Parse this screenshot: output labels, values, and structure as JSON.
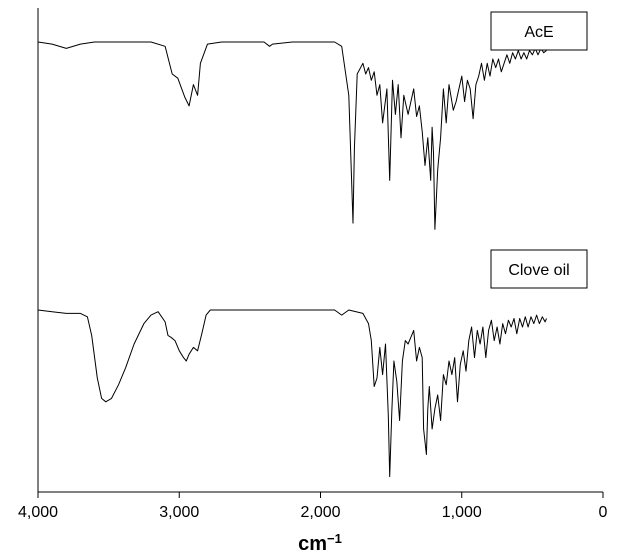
{
  "chart_data": {
    "type": "line",
    "xlabel": "cm",
    "xlabel_sup": "−1",
    "xlim": [
      4000,
      0
    ],
    "x_reversed": true,
    "xticks": [
      4000,
      3000,
      2000,
      1000,
      0
    ],
    "xtick_labels": [
      "4,000",
      "3,000",
      "2,000",
      "1,000",
      "0"
    ],
    "y_axis_labeled": false,
    "grid": false,
    "legend_placement": "top-right of each trace",
    "series": [
      {
        "name": "AcE",
        "color": "#000000",
        "points": [
          [
            4000,
            1.0
          ],
          [
            3900,
            0.99
          ],
          [
            3800,
            0.97
          ],
          [
            3700,
            0.99
          ],
          [
            3600,
            1.0
          ],
          [
            3400,
            1.0
          ],
          [
            3200,
            1.0
          ],
          [
            3100,
            0.98
          ],
          [
            3050,
            0.85
          ],
          [
            3010,
            0.83
          ],
          [
            2960,
            0.74
          ],
          [
            2930,
            0.7
          ],
          [
            2900,
            0.8
          ],
          [
            2870,
            0.75
          ],
          [
            2850,
            0.9
          ],
          [
            2800,
            0.99
          ],
          [
            2700,
            1.0
          ],
          [
            2400,
            1.0
          ],
          [
            2360,
            0.98
          ],
          [
            2340,
            0.99
          ],
          [
            2200,
            1.0
          ],
          [
            1900,
            1.0
          ],
          [
            1850,
            0.98
          ],
          [
            1800,
            0.75
          ],
          [
            1780,
            0.35
          ],
          [
            1770,
            0.15
          ],
          [
            1760,
            0.5
          ],
          [
            1740,
            0.85
          ],
          [
            1700,
            0.9
          ],
          [
            1680,
            0.85
          ],
          [
            1660,
            0.88
          ],
          [
            1640,
            0.82
          ],
          [
            1620,
            0.86
          ],
          [
            1600,
            0.75
          ],
          [
            1580,
            0.8
          ],
          [
            1560,
            0.62
          ],
          [
            1530,
            0.78
          ],
          [
            1510,
            0.35
          ],
          [
            1490,
            0.82
          ],
          [
            1470,
            0.66
          ],
          [
            1450,
            0.8
          ],
          [
            1430,
            0.55
          ],
          [
            1410,
            0.75
          ],
          [
            1380,
            0.66
          ],
          [
            1360,
            0.72
          ],
          [
            1340,
            0.78
          ],
          [
            1320,
            0.65
          ],
          [
            1300,
            0.7
          ],
          [
            1280,
            0.58
          ],
          [
            1260,
            0.42
          ],
          [
            1240,
            0.55
          ],
          [
            1220,
            0.35
          ],
          [
            1210,
            0.6
          ],
          [
            1200,
            0.48
          ],
          [
            1190,
            0.12
          ],
          [
            1170,
            0.4
          ],
          [
            1150,
            0.55
          ],
          [
            1130,
            0.78
          ],
          [
            1110,
            0.62
          ],
          [
            1090,
            0.8
          ],
          [
            1060,
            0.68
          ],
          [
            1040,
            0.72
          ],
          [
            1020,
            0.78
          ],
          [
            1000,
            0.84
          ],
          [
            980,
            0.72
          ],
          [
            960,
            0.82
          ],
          [
            940,
            0.78
          ],
          [
            920,
            0.64
          ],
          [
            900,
            0.8
          ],
          [
            880,
            0.84
          ],
          [
            860,
            0.9
          ],
          [
            840,
            0.82
          ],
          [
            820,
            0.9
          ],
          [
            800,
            0.84
          ],
          [
            780,
            0.92
          ],
          [
            760,
            0.88
          ],
          [
            740,
            0.92
          ],
          [
            720,
            0.86
          ],
          [
            700,
            0.9
          ],
          [
            680,
            0.94
          ],
          [
            660,
            0.9
          ],
          [
            640,
            0.95
          ],
          [
            620,
            0.92
          ],
          [
            600,
            0.96
          ],
          [
            580,
            0.92
          ],
          [
            560,
            0.95
          ],
          [
            540,
            0.92
          ],
          [
            520,
            0.96
          ],
          [
            500,
            0.94
          ],
          [
            480,
            0.97
          ],
          [
            460,
            0.94
          ],
          [
            440,
            0.97
          ],
          [
            420,
            0.95
          ],
          [
            400,
            0.96
          ]
        ]
      },
      {
        "name": "Clove oil",
        "color": "#000000",
        "points": [
          [
            4000,
            1.0
          ],
          [
            3900,
            0.99
          ],
          [
            3800,
            0.98
          ],
          [
            3700,
            0.98
          ],
          [
            3650,
            0.96
          ],
          [
            3620,
            0.85
          ],
          [
            3580,
            0.6
          ],
          [
            3550,
            0.48
          ],
          [
            3520,
            0.46
          ],
          [
            3480,
            0.48
          ],
          [
            3430,
            0.56
          ],
          [
            3380,
            0.66
          ],
          [
            3320,
            0.8
          ],
          [
            3250,
            0.92
          ],
          [
            3200,
            0.97
          ],
          [
            3150,
            0.99
          ],
          [
            3100,
            0.93
          ],
          [
            3080,
            0.85
          ],
          [
            3060,
            0.84
          ],
          [
            3030,
            0.82
          ],
          [
            3000,
            0.76
          ],
          [
            2970,
            0.72
          ],
          [
            2950,
            0.7
          ],
          [
            2930,
            0.74
          ],
          [
            2900,
            0.78
          ],
          [
            2870,
            0.76
          ],
          [
            2840,
            0.86
          ],
          [
            2810,
            0.97
          ],
          [
            2780,
            1.0
          ],
          [
            2600,
            1.0
          ],
          [
            2300,
            1.0
          ],
          [
            2000,
            1.0
          ],
          [
            1900,
            1.0
          ],
          [
            1850,
            0.97
          ],
          [
            1800,
            1.0
          ],
          [
            1700,
            0.98
          ],
          [
            1660,
            0.92
          ],
          [
            1640,
            0.82
          ],
          [
            1620,
            0.55
          ],
          [
            1600,
            0.6
          ],
          [
            1580,
            0.78
          ],
          [
            1560,
            0.62
          ],
          [
            1540,
            0.8
          ],
          [
            1520,
            0.38
          ],
          [
            1510,
            0.02
          ],
          [
            1495,
            0.4
          ],
          [
            1480,
            0.7
          ],
          [
            1460,
            0.58
          ],
          [
            1440,
            0.35
          ],
          [
            1420,
            0.7
          ],
          [
            1400,
            0.82
          ],
          [
            1380,
            0.8
          ],
          [
            1360,
            0.84
          ],
          [
            1340,
            0.88
          ],
          [
            1320,
            0.7
          ],
          [
            1300,
            0.78
          ],
          [
            1280,
            0.72
          ],
          [
            1270,
            0.3
          ],
          [
            1250,
            0.15
          ],
          [
            1240,
            0.42
          ],
          [
            1230,
            0.55
          ],
          [
            1210,
            0.3
          ],
          [
            1190,
            0.42
          ],
          [
            1170,
            0.5
          ],
          [
            1150,
            0.35
          ],
          [
            1130,
            0.62
          ],
          [
            1110,
            0.56
          ],
          [
            1090,
            0.7
          ],
          [
            1070,
            0.62
          ],
          [
            1050,
            0.72
          ],
          [
            1030,
            0.46
          ],
          [
            1010,
            0.68
          ],
          [
            990,
            0.76
          ],
          [
            970,
            0.64
          ],
          [
            950,
            0.82
          ],
          [
            930,
            0.9
          ],
          [
            910,
            0.72
          ],
          [
            890,
            0.88
          ],
          [
            870,
            0.8
          ],
          [
            850,
            0.9
          ],
          [
            830,
            0.72
          ],
          [
            810,
            0.88
          ],
          [
            790,
            0.94
          ],
          [
            770,
            0.82
          ],
          [
            750,
            0.9
          ],
          [
            730,
            0.8
          ],
          [
            710,
            0.92
          ],
          [
            690,
            0.86
          ],
          [
            670,
            0.94
          ],
          [
            650,
            0.9
          ],
          [
            630,
            0.95
          ],
          [
            610,
            0.86
          ],
          [
            590,
            0.95
          ],
          [
            570,
            0.9
          ],
          [
            550,
            0.96
          ],
          [
            530,
            0.9
          ],
          [
            510,
            0.96
          ],
          [
            490,
            0.92
          ],
          [
            470,
            0.97
          ],
          [
            450,
            0.92
          ],
          [
            430,
            0.96
          ],
          [
            410,
            0.93
          ],
          [
            400,
            0.95
          ]
        ]
      }
    ]
  }
}
